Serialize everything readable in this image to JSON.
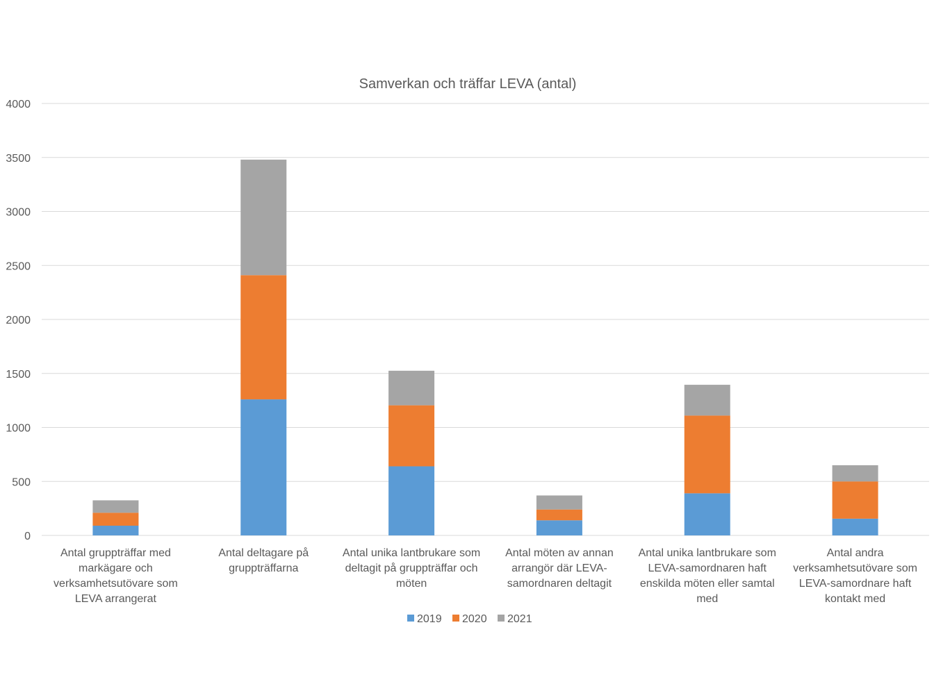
{
  "chart_data": {
    "type": "bar",
    "stacked": true,
    "title": "Samverkan och träffar LEVA (antal)",
    "xlabel": "",
    "ylabel": "",
    "ylim": [
      0,
      4000
    ],
    "yticks": [
      0,
      500,
      1000,
      1500,
      2000,
      2500,
      3000,
      3500,
      4000
    ],
    "grid": true,
    "legend_position": "bottom",
    "categories": [
      [
        "Antal gruppträffar med",
        "markägare och",
        "verksamhetsutövare som",
        "LEVA arrangerat"
      ],
      [
        "Antal deltagare på",
        "gruppträffarna"
      ],
      [
        "Antal unika lantbrukare som",
        "deltagit på gruppträffar och",
        "möten"
      ],
      [
        "Antal möten av annan",
        "arrangör där LEVA-",
        "samordnaren deltagit"
      ],
      [
        "Antal unika lantbrukare som",
        "LEVA-samordnaren haft",
        "enskilda möten eller samtal",
        "med"
      ],
      [
        "Antal andra",
        "verksamhetsutövare som",
        "LEVA-samordnare haft",
        "kontakt med"
      ]
    ],
    "series": [
      {
        "name": "2019",
        "color": "#5b9bd5",
        "values": [
          90,
          1260,
          640,
          140,
          390,
          155
        ]
      },
      {
        "name": "2020",
        "color": "#ed7d31",
        "values": [
          120,
          1150,
          565,
          100,
          720,
          345
        ]
      },
      {
        "name": "2021",
        "color": "#a5a5a5",
        "values": [
          115,
          1070,
          320,
          130,
          285,
          150
        ]
      }
    ]
  }
}
